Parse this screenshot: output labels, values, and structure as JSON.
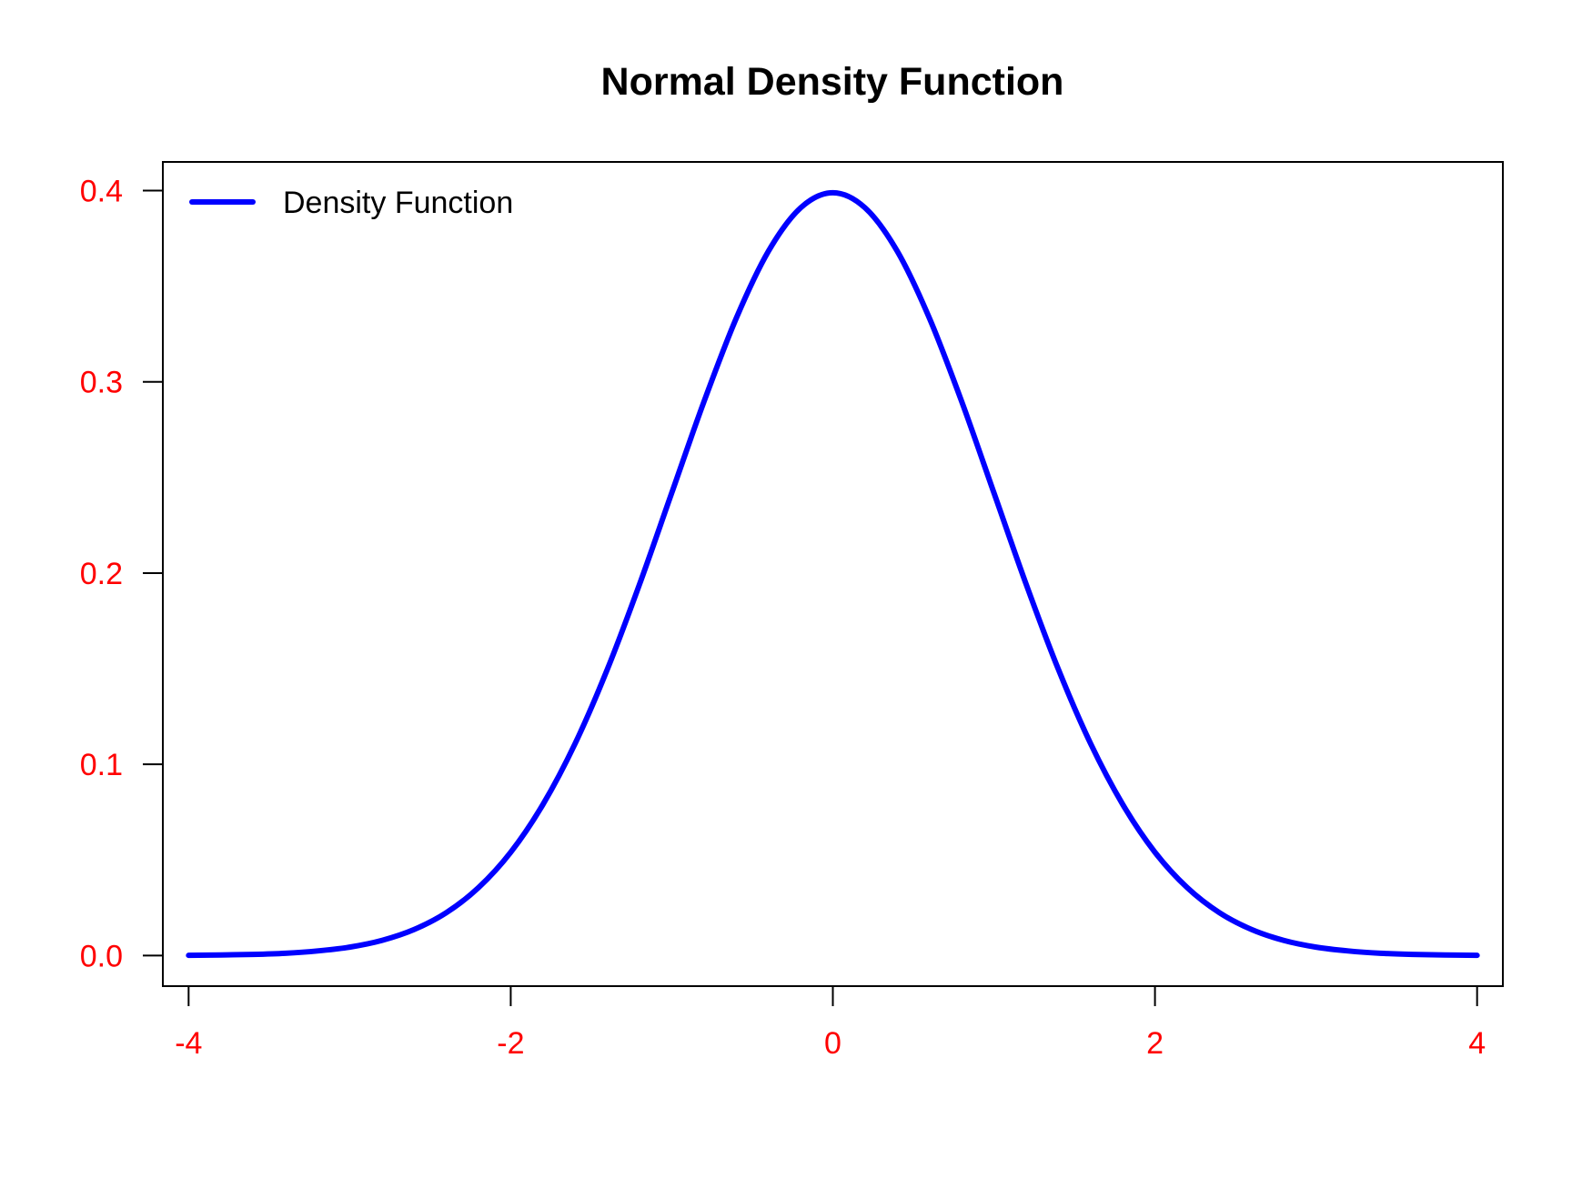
{
  "chart_data": {
    "type": "line",
    "title": "Normal Density Function",
    "xlabel": "",
    "ylabel": "",
    "xlim": [
      -4.16,
      4.16
    ],
    "ylim": [
      -0.016,
      0.415
    ],
    "xticks": [
      -4,
      -2,
      0,
      2,
      4
    ],
    "xtick_labels": [
      "-4",
      "-2",
      "0",
      "2",
      "4"
    ],
    "yticks": [
      0.0,
      0.1,
      0.2,
      0.3,
      0.4
    ],
    "ytick_labels": [
      "0.0",
      "0.1",
      "0.2",
      "0.3",
      "0.4"
    ],
    "grid": false,
    "legend": {
      "position": "top-left",
      "entries": [
        {
          "label": "Density Function",
          "color": "#0000FF"
        }
      ]
    },
    "tick_label_color": "#FF0000",
    "series": [
      {
        "name": "Density Function",
        "color": "#0000FF",
        "x": [
          -4.0,
          -3.8,
          -3.6,
          -3.4,
          -3.2,
          -3.0,
          -2.8,
          -2.6,
          -2.4,
          -2.2,
          -2.0,
          -1.8,
          -1.6,
          -1.4,
          -1.2,
          -1.0,
          -0.8,
          -0.6,
          -0.4,
          -0.2,
          0.0,
          0.2,
          0.4,
          0.6,
          0.8,
          1.0,
          1.2,
          1.4,
          1.6,
          1.8,
          2.0,
          2.2,
          2.4,
          2.6,
          2.8,
          3.0,
          3.2,
          3.4,
          3.6,
          3.8,
          4.0
        ],
        "y": [
          0.0001,
          0.0003,
          0.0006,
          0.0012,
          0.0024,
          0.0044,
          0.0079,
          0.0136,
          0.0224,
          0.0355,
          0.054,
          0.079,
          0.1109,
          0.1497,
          0.1942,
          0.242,
          0.2897,
          0.3332,
          0.3683,
          0.391,
          0.3989,
          0.391,
          0.3683,
          0.3332,
          0.2897,
          0.242,
          0.1942,
          0.1497,
          0.1109,
          0.079,
          0.054,
          0.0355,
          0.0224,
          0.0136,
          0.0079,
          0.0044,
          0.0024,
          0.0012,
          0.0006,
          0.0003,
          0.0001
        ]
      }
    ]
  }
}
